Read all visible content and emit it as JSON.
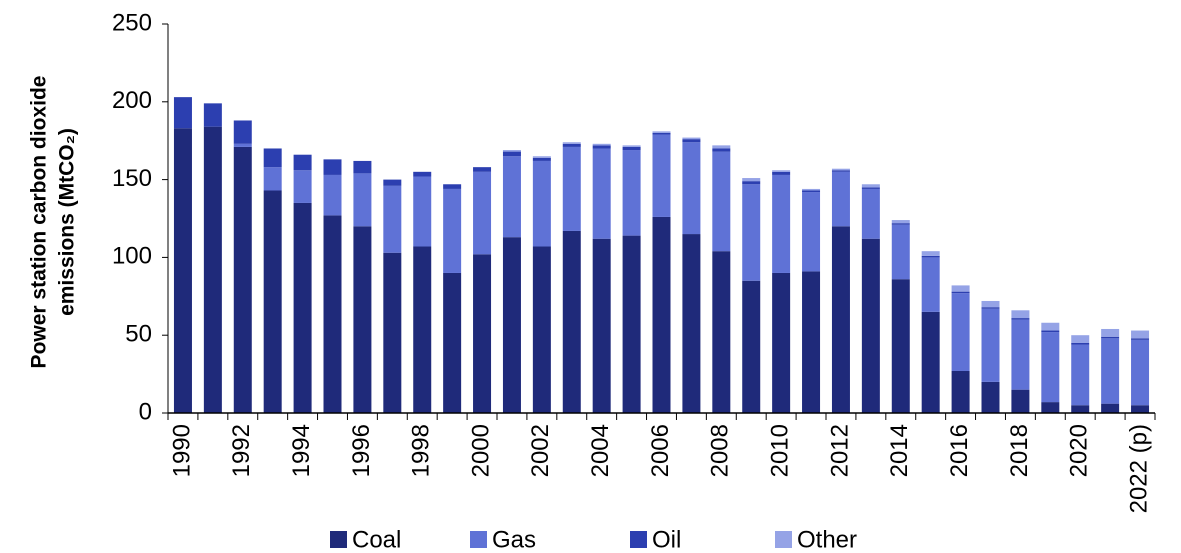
{
  "chart_data": {
    "type": "stacked_bar",
    "y_label": [
      "Power station carbon dioxide",
      "emissions (MtCO₂)"
    ],
    "categories": [
      "1990",
      null,
      "1992",
      null,
      "1994",
      null,
      "1996",
      null,
      "1998",
      null,
      "2000",
      null,
      "2002",
      null,
      "2004",
      null,
      "2006",
      null,
      "2008",
      null,
      "2010",
      null,
      "2012",
      null,
      "2014",
      null,
      "2016",
      null,
      "2018",
      null,
      "2020",
      null,
      "2022 (p)"
    ],
    "series": [
      {
        "name": "Coal",
        "color": "#1f2a7a",
        "values": [
          183,
          184,
          171,
          143,
          135,
          127,
          120,
          103,
          107,
          90,
          102,
          113,
          107,
          117,
          112,
          114,
          126,
          115,
          104,
          85,
          90,
          91,
          120,
          112,
          86,
          65,
          27,
          20,
          15,
          7,
          5,
          6,
          5
        ]
      },
      {
        "name": "Gas",
        "color": "#5f72d6",
        "values": [
          0,
          0,
          2,
          15,
          21,
          26,
          34,
          43,
          45,
          54,
          53,
          52,
          55,
          54,
          58,
          55,
          53,
          59,
          64,
          62,
          63,
          51,
          35,
          32,
          35,
          35,
          50,
          47,
          45,
          45,
          39,
          42,
          42
        ]
      },
      {
        "name": "Oil",
        "color": "#2c3fb0",
        "values": [
          20,
          15,
          15,
          12,
          10,
          10,
          8,
          4,
          3,
          3,
          3,
          3,
          2,
          2,
          2,
          2,
          1,
          2,
          2,
          2,
          2,
          1,
          1,
          1,
          1,
          1,
          1,
          1,
          1,
          1,
          1,
          1,
          1
        ]
      },
      {
        "name": "Other",
        "color": "#95a3e6",
        "values": [
          0,
          0,
          0,
          0,
          0,
          0,
          0,
          0,
          0,
          0,
          0,
          1,
          1,
          1,
          1,
          1,
          1,
          1,
          2,
          2,
          1,
          1,
          1,
          2,
          2,
          3,
          4,
          4,
          5,
          5,
          5,
          5,
          5
        ]
      }
    ],
    "ylim": [
      0,
      250
    ],
    "yticks": [
      0,
      50,
      100,
      150,
      200,
      250
    ],
    "grid": false
  }
}
